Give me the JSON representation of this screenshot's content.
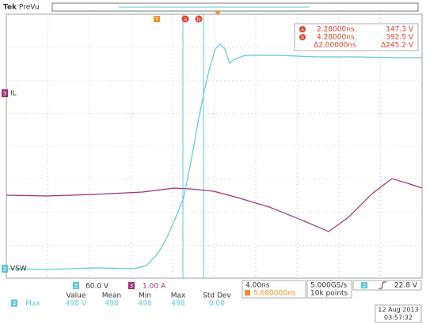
{
  "header": {
    "brand": "Tek",
    "mode": "PreVu"
  },
  "channels": {
    "ch3_number": "3",
    "ch3_label": "IL",
    "ch2_number": "2",
    "ch2_label": "VSW"
  },
  "cursor_markers": {
    "trigger": "T",
    "a": "a",
    "b": "b"
  },
  "cursor_readout": {
    "a": {
      "id": "a",
      "time": "2.28000ns",
      "value": "147.3 V"
    },
    "b": {
      "id": "b",
      "time": "4.28000ns",
      "value": "392.5 V"
    },
    "delta": {
      "time": "Δ2.00000ns",
      "value": "Δ245.2 V"
    }
  },
  "scales": {
    "ch2": "2",
    "ch2_scale": "60.0 V",
    "ch3": "3",
    "ch3_scale": "1.00 A"
  },
  "measurement": {
    "headers": [
      "Value",
      "Mean",
      "Min",
      "Max",
      "Std Dev"
    ],
    "channel": "2",
    "stat": "Max",
    "values": [
      "498 V",
      "498",
      "498",
      "498",
      "0.00"
    ]
  },
  "timebase": {
    "scale": "4.00ns",
    "position": "5.680000ns",
    "sample_rate": "5.000GS/s",
    "record": "10k points"
  },
  "trigger": {
    "channel": "2",
    "level": "22.8 V"
  },
  "datetime": {
    "date": "12 Aug 2013",
    "time": "03:57:32"
  }
}
